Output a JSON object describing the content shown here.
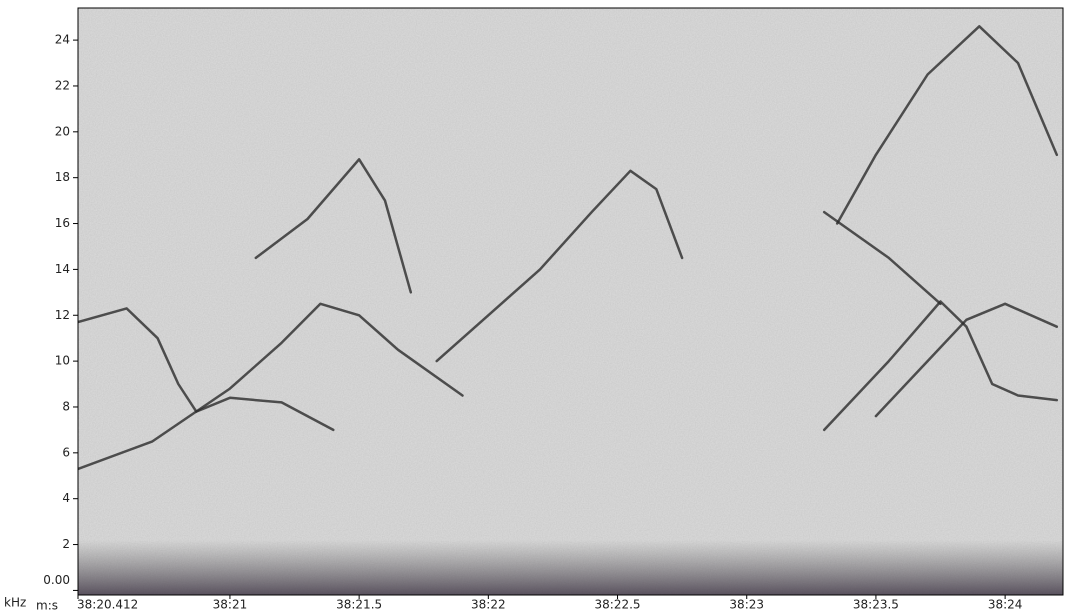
{
  "chart_data": {
    "type": "spectrogram",
    "y_unit": "kHz",
    "x_unit": "m:s",
    "xlim": [
      20.412,
      24.224
    ],
    "ylim": [
      -0.2,
      25.4
    ],
    "xticks": [
      {
        "value": 20.412,
        "label": "38:20.412"
      },
      {
        "value": 21,
        "label": "38:21"
      },
      {
        "value": 21.5,
        "label": "38:21.5"
      },
      {
        "value": 22,
        "label": "38:22"
      },
      {
        "value": 22.5,
        "label": "38:22.5"
      },
      {
        "value": 23,
        "label": "38:23"
      },
      {
        "value": 23.5,
        "label": "38:23.5"
      },
      {
        "value": 24,
        "label": "38:24"
      }
    ],
    "yticks": [
      {
        "value": 0,
        "label": "0.00"
      },
      2,
      4,
      6,
      8,
      10,
      12,
      14,
      16,
      18,
      20,
      22,
      24
    ],
    "color": "#2a2a2a",
    "traces": [
      {
        "x": [
          20.412,
          20.7,
          21.0,
          21.2,
          21.35,
          21.5,
          21.65,
          21.9
        ],
        "y": [
          5.3,
          6.5,
          8.8,
          10.8,
          12.5,
          12.0,
          10.5,
          8.5
        ]
      },
      {
        "x": [
          21.8,
          22.0,
          22.2,
          22.4,
          22.55,
          22.65,
          22.75
        ],
        "y": [
          10.0,
          12.0,
          14.0,
          16.5,
          18.3,
          17.5,
          14.5
        ]
      },
      {
        "x": [
          20.412,
          20.6,
          20.72,
          20.8,
          20.87,
          21.0,
          21.2,
          21.4
        ],
        "y": [
          11.7,
          12.3,
          11.0,
          9.0,
          7.8,
          8.4,
          8.2,
          7.0
        ]
      },
      {
        "x": [
          23.35,
          23.5,
          23.7,
          23.9,
          24.05,
          24.2
        ],
        "y": [
          16,
          19,
          22.5,
          24.6,
          23,
          19
        ]
      },
      {
        "x": [
          23.3,
          23.55,
          23.75,
          23.85,
          23.95,
          24.05,
          24.2
        ],
        "y": [
          7.0,
          10,
          12.6,
          11.5,
          9,
          8.5,
          8.3
        ]
      },
      {
        "x": [
          23.5,
          23.7,
          23.85,
          24.0,
          24.2
        ],
        "y": [
          7.6,
          10,
          11.8,
          12.5,
          11.5
        ]
      },
      {
        "x": [
          21.1,
          21.3,
          21.5,
          21.6,
          21.7
        ],
        "y": [
          14.5,
          16.2,
          18.8,
          17,
          13
        ]
      },
      {
        "x": [
          23.3,
          23.55,
          23.75
        ],
        "y": [
          16.5,
          14.5,
          12.5
        ]
      }
    ]
  }
}
